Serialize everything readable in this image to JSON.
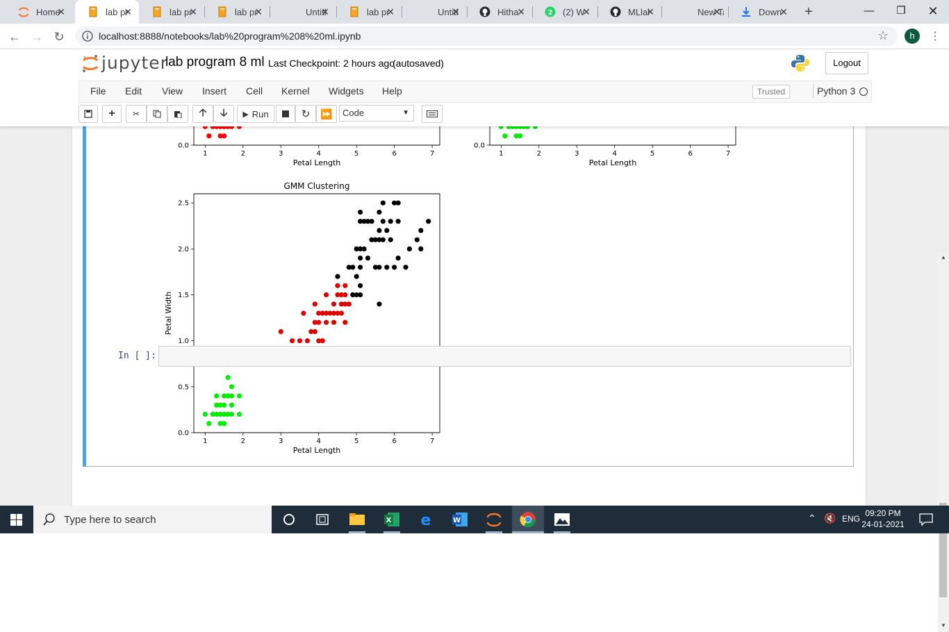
{
  "browser": {
    "tabs": [
      {
        "title": "Home",
        "icon": "jupyter-icon"
      },
      {
        "title": "lab pr",
        "icon": "notebook-icon",
        "active": true
      },
      {
        "title": "lab pr",
        "icon": "notebook-icon"
      },
      {
        "title": "lab pr",
        "icon": "notebook-icon"
      },
      {
        "title": "Untitl",
        "icon": "none"
      },
      {
        "title": "lab pr",
        "icon": "notebook-icon"
      },
      {
        "title": "Untitl",
        "icon": "none"
      },
      {
        "title": "Hitha",
        "icon": "github-icon"
      },
      {
        "title": "(2) W",
        "icon": "whatsapp-icon"
      },
      {
        "title": "MLlal",
        "icon": "github-icon"
      },
      {
        "title": "New Tab",
        "icon": "none"
      },
      {
        "title": "Down",
        "icon": "download-icon"
      }
    ],
    "url": "localhost:8888/notebooks/lab%20program%208%20ml.ipynb",
    "profile_initial": "h"
  },
  "jupyter": {
    "logo_text": "jupyter",
    "notebook_title": "lab program 8 ml",
    "checkpoint": "Last Checkpoint: 2 hours ago",
    "autosave": "(autosaved)",
    "logout": "Logout",
    "menu": [
      "File",
      "Edit",
      "View",
      "Insert",
      "Cell",
      "Kernel",
      "Widgets",
      "Help"
    ],
    "trusted": "Trusted",
    "kernel": "Python 3",
    "run_label": "Run",
    "cell_type": "Code",
    "prompt": "In [ ]:"
  },
  "chart_data": [
    {
      "type": "scatter",
      "title": "",
      "xlabel": "Petal Length",
      "ylabel": "",
      "xticks": [
        "1",
        "2",
        "3",
        "4",
        "5",
        "6",
        "7"
      ],
      "yticks_visible": [
        "0.0"
      ],
      "partially_visible": true,
      "series": [
        {
          "color": "#ff0000",
          "points": [
            [
              1.1,
              0.1
            ],
            [
              1.4,
              0.1
            ],
            [
              1.5,
              0.1
            ],
            [
              1.0,
              0.2
            ],
            [
              1.2,
              0.2
            ],
            [
              1.3,
              0.2
            ],
            [
              1.4,
              0.2
            ],
            [
              1.5,
              0.2
            ],
            [
              1.6,
              0.2
            ],
            [
              1.7,
              0.2
            ],
            [
              1.9,
              0.2
            ]
          ]
        }
      ]
    },
    {
      "type": "scatter",
      "title": "",
      "xlabel": "Petal Length",
      "ylabel": "",
      "xticks": [
        "1",
        "2",
        "3",
        "4",
        "5",
        "6",
        "7"
      ],
      "yticks_visible": [
        "0.0"
      ],
      "partially_visible": true,
      "series": [
        {
          "color": "#00ee00",
          "points": [
            [
              1.1,
              0.1
            ],
            [
              1.4,
              0.1
            ],
            [
              1.5,
              0.1
            ],
            [
              1.0,
              0.2
            ],
            [
              1.2,
              0.2
            ],
            [
              1.3,
              0.2
            ],
            [
              1.4,
              0.2
            ],
            [
              1.5,
              0.2
            ],
            [
              1.6,
              0.2
            ],
            [
              1.7,
              0.2
            ],
            [
              1.9,
              0.2
            ]
          ]
        }
      ]
    },
    {
      "type": "scatter",
      "title": "GMM Clustering",
      "xlabel": "Petal Length",
      "ylabel": "Petal Width",
      "xlim": [
        0.7,
        7.2
      ],
      "ylim": [
        0.0,
        2.6
      ],
      "xticks": [
        1,
        2,
        3,
        4,
        5,
        6,
        7
      ],
      "yticks": [
        0.0,
        0.5,
        1.0,
        1.5,
        2.0,
        2.5
      ],
      "series": [
        {
          "color": "#00ee00",
          "points": [
            [
              1.0,
              0.2
            ],
            [
              1.1,
              0.1
            ],
            [
              1.2,
              0.2
            ],
            [
              1.3,
              0.2
            ],
            [
              1.3,
              0.3
            ],
            [
              1.3,
              0.4
            ],
            [
              1.4,
              0.1
            ],
            [
              1.4,
              0.2
            ],
            [
              1.4,
              0.3
            ],
            [
              1.5,
              0.1
            ],
            [
              1.5,
              0.2
            ],
            [
              1.5,
              0.3
            ],
            [
              1.5,
              0.4
            ],
            [
              1.6,
              0.2
            ],
            [
              1.6,
              0.4
            ],
            [
              1.6,
              0.6
            ],
            [
              1.7,
              0.2
            ],
            [
              1.7,
              0.3
            ],
            [
              1.7,
              0.4
            ],
            [
              1.7,
              0.5
            ],
            [
              1.9,
              0.2
            ],
            [
              1.9,
              0.4
            ]
          ]
        },
        {
          "color": "#e00000",
          "points": [
            [
              3.0,
              1.1
            ],
            [
              3.3,
              1.0
            ],
            [
              3.5,
              1.0
            ],
            [
              3.6,
              1.3
            ],
            [
              3.7,
              1.0
            ],
            [
              3.8,
              1.1
            ],
            [
              3.9,
              1.1
            ],
            [
              3.9,
              1.2
            ],
            [
              3.9,
              1.4
            ],
            [
              4.0,
              1.0
            ],
            [
              4.0,
              1.2
            ],
            [
              4.0,
              1.3
            ],
            [
              4.1,
              1.0
            ],
            [
              4.1,
              1.3
            ],
            [
              4.2,
              1.2
            ],
            [
              4.2,
              1.3
            ],
            [
              4.2,
              1.5
            ],
            [
              4.3,
              1.3
            ],
            [
              4.4,
              1.2
            ],
            [
              4.4,
              1.3
            ],
            [
              4.4,
              1.4
            ],
            [
              4.5,
              1.3
            ],
            [
              4.5,
              1.5
            ],
            [
              4.5,
              1.6
            ],
            [
              4.6,
              1.3
            ],
            [
              4.6,
              1.4
            ],
            [
              4.6,
              1.5
            ],
            [
              4.7,
              1.2
            ],
            [
              4.7,
              1.4
            ],
            [
              4.7,
              1.5
            ],
            [
              4.7,
              1.6
            ],
            [
              4.8,
              1.4
            ]
          ]
        },
        {
          "color": "#000000",
          "points": [
            [
              4.5,
              1.7
            ],
            [
              4.8,
              1.8
            ],
            [
              4.9,
              1.5
            ],
            [
              4.9,
              1.8
            ],
            [
              5.0,
              1.5
            ],
            [
              5.0,
              1.7
            ],
            [
              5.0,
              2.0
            ],
            [
              5.1,
              1.5
            ],
            [
              5.1,
              1.6
            ],
            [
              5.1,
              1.8
            ],
            [
              5.1,
              1.9
            ],
            [
              5.1,
              2.0
            ],
            [
              5.1,
              2.3
            ],
            [
              5.1,
              2.4
            ],
            [
              5.2,
              2.0
            ],
            [
              5.2,
              2.3
            ],
            [
              5.3,
              1.9
            ],
            [
              5.3,
              2.3
            ],
            [
              5.4,
              2.1
            ],
            [
              5.4,
              2.3
            ],
            [
              5.5,
              1.8
            ],
            [
              5.5,
              2.1
            ],
            [
              5.6,
              1.4
            ],
            [
              5.6,
              1.8
            ],
            [
              5.6,
              2.1
            ],
            [
              5.6,
              2.2
            ],
            [
              5.6,
              2.4
            ],
            [
              5.7,
              2.1
            ],
            [
              5.7,
              2.3
            ],
            [
              5.7,
              2.5
            ],
            [
              5.8,
              1.8
            ],
            [
              5.8,
              2.2
            ],
            [
              5.9,
              2.1
            ],
            [
              5.9,
              2.3
            ],
            [
              6.0,
              1.8
            ],
            [
              6.0,
              2.5
            ],
            [
              6.1,
              1.9
            ],
            [
              6.1,
              2.3
            ],
            [
              6.1,
              2.5
            ],
            [
              6.3,
              1.8
            ],
            [
              6.4,
              2.0
            ],
            [
              6.6,
              2.1
            ],
            [
              6.7,
              2.0
            ],
            [
              6.7,
              2.2
            ],
            [
              6.9,
              2.3
            ]
          ]
        }
      ]
    }
  ],
  "taskbar": {
    "search_placeholder": "Type here to search",
    "lang": "ENG",
    "time": "09:20 PM",
    "date": "24-01-2021"
  }
}
